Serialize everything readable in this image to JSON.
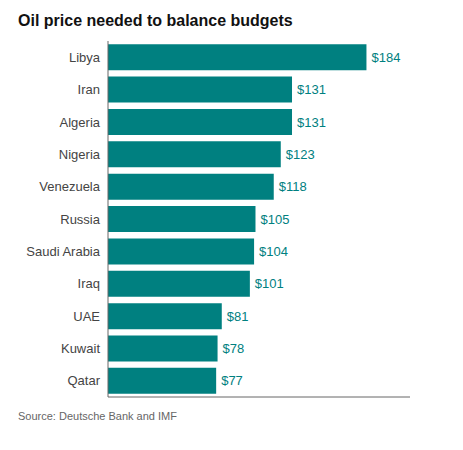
{
  "chart_data": {
    "type": "bar",
    "orientation": "horizontal",
    "title": "Oil price needed to balance budgets",
    "annotations": [
      "Source: Deutsche Bank and IMF"
    ],
    "categories": [
      "Libya",
      "Iran",
      "Algeria",
      "Nigeria",
      "Venezuela",
      "Russia",
      "Saudi Arabia",
      "Iraq",
      "UAE",
      "Kuwait",
      "Qatar"
    ],
    "values": [
      184,
      131,
      131,
      123,
      118,
      105,
      104,
      101,
      81,
      78,
      77
    ],
    "value_labels": [
      "$184",
      "$131",
      "$131",
      "$123",
      "$118",
      "$105",
      "$104",
      "$101",
      "$81",
      "$78",
      "$77"
    ],
    "data_labels": true,
    "color": "#008080",
    "xlim": [
      0,
      215
    ],
    "tick_labels": "y",
    "grid": false
  }
}
